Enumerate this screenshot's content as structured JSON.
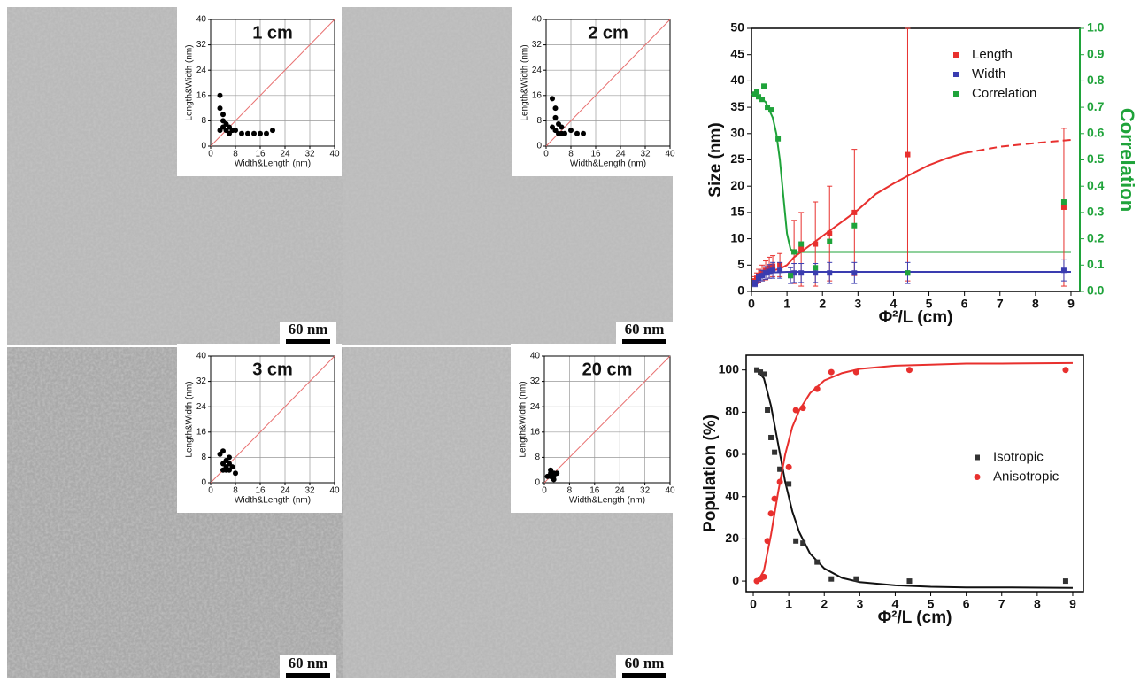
{
  "panels": [
    {
      "scale_bar": "60 nm"
    },
    {
      "scale_bar": "60 nm"
    },
    {
      "scale_bar": "60 nm"
    },
    {
      "scale_bar": "60 nm"
    }
  ],
  "chart_data": [
    {
      "type": "scatter",
      "title": "1 cm",
      "xlabel": "Width&Length (nm)",
      "ylabel": "Length&Width (nm)",
      "xlim": [
        0,
        40
      ],
      "ylim": [
        0,
        40
      ],
      "xticks": [
        0,
        8,
        16,
        24,
        32,
        40
      ],
      "yticks": [
        0,
        8,
        16,
        24,
        32,
        40
      ],
      "grid": true,
      "color": "#000000",
      "x": [
        3,
        3,
        4,
        4,
        5,
        6,
        7,
        8,
        10,
        12,
        14,
        16,
        18,
        20,
        4,
        5,
        3,
        6
      ],
      "y": [
        16,
        12,
        10,
        8,
        7,
        6,
        5,
        5,
        4,
        4,
        4,
        4,
        4,
        5,
        6,
        5,
        5,
        4
      ]
    },
    {
      "type": "scatter",
      "title": "2 cm",
      "xlabel": "Width&Length (nm)",
      "ylabel": "Length&Width (nm)",
      "xlim": [
        0,
        40
      ],
      "ylim": [
        0,
        40
      ],
      "xticks": [
        0,
        8,
        16,
        24,
        32,
        40
      ],
      "yticks": [
        0,
        8,
        16,
        24,
        32,
        40
      ],
      "grid": true,
      "color": "#000000",
      "x": [
        2,
        3,
        3,
        4,
        3,
        4,
        5,
        6,
        8,
        10,
        12,
        2,
        5
      ],
      "y": [
        15,
        12,
        9,
        7,
        5,
        4,
        4,
        4,
        5,
        4,
        4,
        6,
        6
      ]
    },
    {
      "type": "scatter",
      "title": "3 cm",
      "xlabel": "Width&Length (nm)",
      "ylabel": "Length&Width (nm)",
      "xlim": [
        0,
        40
      ],
      "ylim": [
        0,
        40
      ],
      "xticks": [
        0,
        8,
        16,
        24,
        32,
        40
      ],
      "yticks": [
        0,
        8,
        16,
        24,
        32,
        40
      ],
      "grid": true,
      "color": "#000000",
      "x": [
        4,
        5,
        6,
        4,
        5,
        6,
        3,
        7,
        8,
        5,
        4,
        6
      ],
      "y": [
        6,
        5,
        6,
        4,
        4,
        4,
        9,
        5,
        3,
        7,
        10,
        8
      ]
    },
    {
      "type": "scatter",
      "title": "20 cm",
      "xlabel": "Width&Length (nm)",
      "ylabel": "Length&Width (nm)",
      "xlim": [
        0,
        40
      ],
      "ylim": [
        0,
        40
      ],
      "xticks": [
        0,
        8,
        16,
        24,
        32,
        40
      ],
      "yticks": [
        0,
        8,
        16,
        24,
        32,
        40
      ],
      "grid": true,
      "color": "#000000",
      "x": [
        2,
        3,
        2,
        3,
        2,
        1,
        4,
        3
      ],
      "y": [
        3,
        2,
        2,
        3,
        4,
        2,
        3,
        1
      ]
    },
    {
      "type": "errorbar",
      "xlabel": "Φ²/L (cm)",
      "ylabel": "Size (nm)",
      "y2label": "Correlation",
      "legend": "upper right",
      "xlim": [
        0,
        9.25
      ],
      "xticks": [
        0,
        1,
        2,
        3,
        4,
        5,
        6,
        7,
        8,
        9
      ],
      "ylim": [
        0,
        50
      ],
      "yticks": [
        0,
        5,
        10,
        15,
        20,
        25,
        30,
        35,
        40,
        45,
        50
      ],
      "y2lim": [
        0,
        1
      ],
      "y2ticks": [
        {
          "value": 0,
          "label": "0.0"
        },
        0.1,
        0.2,
        0.3,
        0.4,
        0.5,
        0.6,
        0.7,
        0.8,
        0.9,
        {
          "value": 1,
          "label": "1.0"
        }
      ],
      "y2color": "#1fa33a",
      "series": [
        {
          "name": "Length",
          "color": "#e8302e",
          "marker": "square",
          "x": [
            0.1,
            0.15,
            0.2,
            0.3,
            0.4,
            0.5,
            0.6,
            0.8,
            1.2,
            1.4,
            1.8,
            2.2,
            2.9,
            4.4,
            8.8
          ],
          "values": [
            2,
            2.5,
            3,
            3.5,
            4,
            4.5,
            4.8,
            5,
            7.5,
            8,
            9,
            11,
            15,
            26,
            16
          ],
          "errors": [
            0.8,
            1,
            1.2,
            1.5,
            1.8,
            2,
            2,
            2.2,
            6,
            7,
            8,
            9,
            12,
            24,
            15
          ]
        },
        {
          "name": "Width",
          "color": "#3a3cb0",
          "marker": "square",
          "x": [
            0.1,
            0.2,
            0.3,
            0.4,
            0.5,
            0.6,
            0.8,
            1.1,
            1.2,
            1.4,
            1.8,
            2.2,
            2.9,
            4.4,
            8.8
          ],
          "values": [
            1.5,
            2.5,
            3,
            3.5,
            3.8,
            4,
            4,
            3,
            3.5,
            3.5,
            3.5,
            3.5,
            3.5,
            3.5,
            4
          ],
          "errors": [
            0.6,
            0.8,
            1,
            1.2,
            1.3,
            1.5,
            1.5,
            1.5,
            1.8,
            1.8,
            1.8,
            2,
            2,
            2,
            2
          ]
        },
        {
          "name": "Correlation",
          "color": "#1fa33a",
          "marker": "square",
          "axis": "y2",
          "x": [
            0.1,
            0.15,
            0.2,
            0.3,
            0.35,
            0.45,
            0.55,
            0.75,
            1.1,
            1.2,
            1.4,
            1.8,
            2.2,
            2.9,
            4.4,
            8.8
          ],
          "values": [
            0.75,
            0.76,
            0.74,
            0.73,
            0.78,
            0.7,
            0.69,
            0.58,
            0.06,
            0.15,
            0.18,
            0.09,
            0.19,
            0.25,
            0.07,
            0.34
          ]
        }
      ],
      "fits": [
        {
          "color": "#e8302e",
          "x": [
            0.1,
            0.3,
            0.5,
            0.8,
            1,
            1.2,
            1.5,
            2,
            2.5,
            3,
            3.5,
            4,
            4.5,
            5,
            5.5,
            6
          ],
          "values": [
            2,
            3,
            3.8,
            4.3,
            5,
            6.5,
            8,
            10.5,
            13,
            15.5,
            18.5,
            20.5,
            22.3,
            24,
            25.3,
            26.3
          ]
        },
        {
          "color": "#e8302e",
          "dash": true,
          "x": [
            6,
            7,
            8,
            9
          ],
          "values": [
            26.3,
            27.5,
            28.2,
            28.8
          ]
        },
        {
          "color": "#3a3cb0",
          "x": [
            0.1,
            0.3,
            0.6,
            1,
            9
          ],
          "values": [
            1.5,
            3,
            3.6,
            3.7,
            3.7
          ]
        },
        {
          "color": "#1fa33a",
          "axis": "y2",
          "x": [
            0,
            0.2,
            0.4,
            0.6,
            0.7,
            0.8,
            0.9,
            1,
            1.1,
            1.2,
            1.5,
            9
          ],
          "values": [
            0.75,
            0.74,
            0.72,
            0.66,
            0.6,
            0.5,
            0.36,
            0.22,
            0.16,
            0.15,
            0.15,
            0.15
          ]
        }
      ]
    },
    {
      "type": "errorbar",
      "xlabel": "Φ²/L (cm)",
      "ylabel": "Population (%)",
      "legend": "center right",
      "xlim": [
        -0.2,
        9.3
      ],
      "xticks": [
        0,
        1,
        2,
        3,
        4,
        5,
        6,
        7,
        8,
        9
      ],
      "ylim": [
        -5,
        107
      ],
      "yticks": [
        0,
        20,
        40,
        60,
        80,
        100
      ],
      "series": [
        {
          "name": "Isotropic",
          "color": "#333333",
          "marker": "square",
          "x": [
            0.1,
            0.2,
            0.3,
            0.4,
            0.5,
            0.6,
            0.75,
            1,
            1.2,
            1.4,
            1.8,
            2.2,
            2.9,
            4.4,
            8.8
          ],
          "values": [
            100,
            99,
            98,
            81,
            68,
            61,
            53,
            46,
            19,
            18,
            9,
            1,
            1,
            0,
            0
          ]
        },
        {
          "name": "Anisotropic",
          "color": "#e8302e",
          "marker": "circle",
          "x": [
            0.1,
            0.2,
            0.3,
            0.4,
            0.5,
            0.6,
            0.75,
            1,
            1.2,
            1.4,
            1.8,
            2.2,
            2.9,
            4.4,
            8.8
          ],
          "values": [
            0,
            1,
            2,
            19,
            32,
            39,
            47,
            54,
            81,
            82,
            91,
            99,
            99,
            100,
            100
          ]
        }
      ],
      "fits": [
        {
          "color": "#111111",
          "x": [
            0.1,
            0.3,
            0.5,
            0.7,
            0.9,
            1.1,
            1.3,
            1.6,
            2,
            2.5,
            3,
            4,
            5,
            6,
            7,
            9
          ],
          "values": [
            100,
            96,
            83,
            65,
            47,
            33,
            23,
            13,
            6,
            1.5,
            -0.5,
            -2,
            -2.7,
            -3,
            -3,
            -3.2
          ]
        },
        {
          "color": "#e8302e",
          "x": [
            0.1,
            0.3,
            0.5,
            0.7,
            0.9,
            1.1,
            1.3,
            1.6,
            2,
            2.5,
            3,
            4,
            5,
            6,
            7,
            9
          ],
          "values": [
            -1,
            5,
            22,
            42,
            60,
            73,
            81,
            89,
            95,
            98.5,
            100.5,
            102,
            102.5,
            103,
            103,
            103.3
          ]
        }
      ]
    }
  ]
}
